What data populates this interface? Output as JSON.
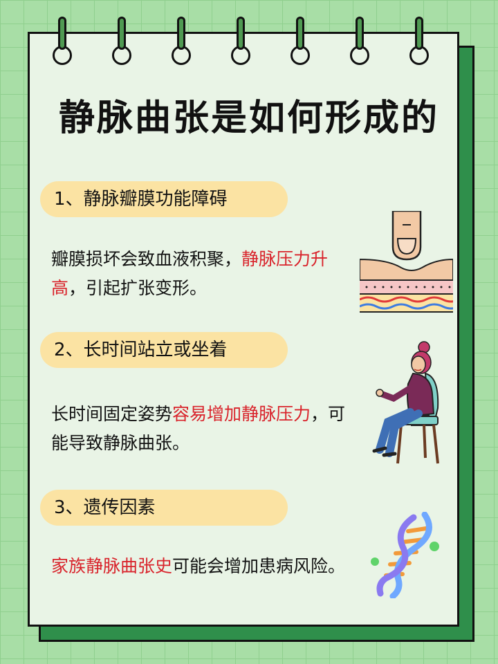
{
  "title": "静脉曲张是如何形成的",
  "sections": [
    {
      "heading": "1、静脉瓣膜功能障碍",
      "body_1": "瓣膜损坏会致血液积聚，",
      "body_red": "静脉压力升高",
      "body_2": "，引起扩张变形。",
      "illustration": "finger-pressing-skin-vein"
    },
    {
      "heading": "2、长时间站立或坐着",
      "body_1": "长时间固定姿势",
      "body_red": "容易增加静脉压力",
      "body_2": "，可能导致静脉曲张。",
      "illustration": "woman-sitting-on-chair"
    },
    {
      "heading": "3、遗传因素",
      "body_red": "家族静脉曲张史",
      "body_2": "可能会增加患病风险。",
      "illustration": "dna-helix"
    }
  ],
  "colors": {
    "background": "#a8dea6",
    "paper": "#e9f4e6",
    "paper_shadow": "#2f8f4b",
    "pill": "#fbe3a3",
    "highlight": "#d9232b"
  }
}
